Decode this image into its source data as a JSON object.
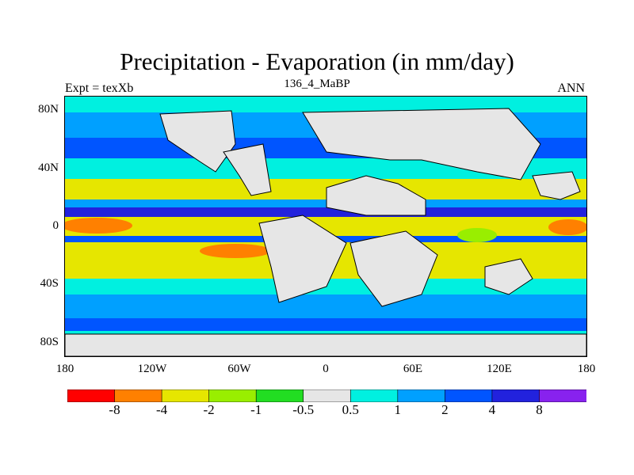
{
  "title": "Precipitation - Evaporation (in mm/day)",
  "subtitle": "136_4_MaBP",
  "left_label": "Expt = texXb",
  "right_label": "ANN",
  "y_axis": {
    "ticks": [
      "80N",
      "40N",
      "0",
      "40S",
      "80S"
    ]
  },
  "x_axis": {
    "ticks": [
      "180",
      "120W",
      "60W",
      "0",
      "60E",
      "120E",
      "180"
    ]
  },
  "colorbar": {
    "colors": [
      "#ff0000",
      "#ff8000",
      "#e6e600",
      "#99ee00",
      "#22dd22",
      "#e6e6e6",
      "#00f0e0",
      "#00a0ff",
      "#0055ff",
      "#2222dd",
      "#8822ee"
    ],
    "labels": [
      "-8",
      "-4",
      "-2",
      "-1",
      "-0.5",
      "0.5",
      "1",
      "2",
      "4",
      "8"
    ]
  }
}
